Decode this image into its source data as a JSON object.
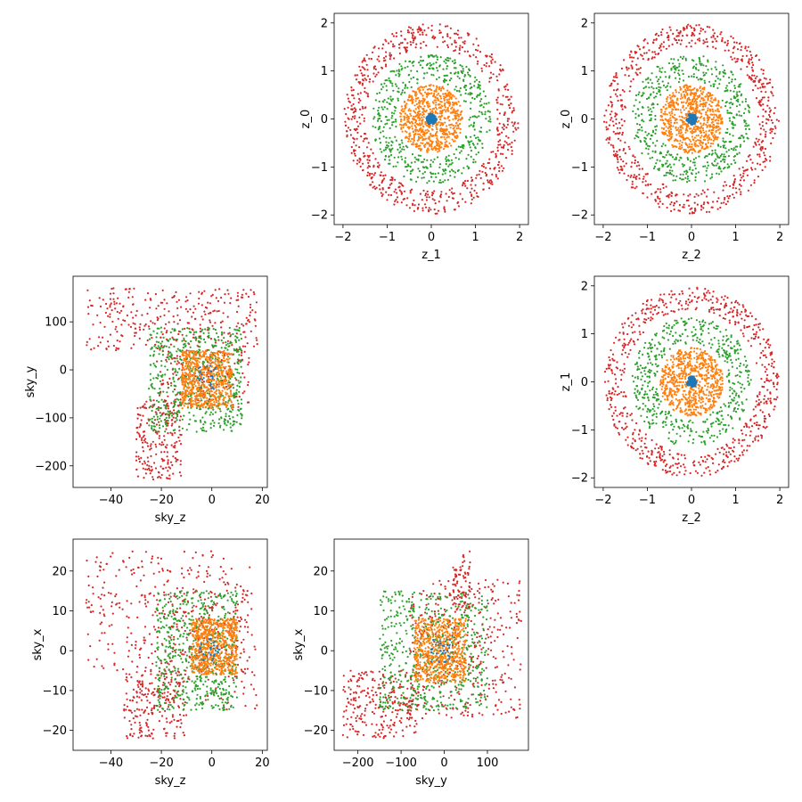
{
  "colors": {
    "s0": "#1f77b4",
    "s1": "#ff7f0e",
    "s2": "#2ca02c",
    "s3": "#d62728"
  },
  "chart_data": [
    {
      "type": "scatter",
      "xlabel": "z_1",
      "ylabel": "z_0",
      "xlim": [
        -2.2,
        2.2
      ],
      "ylim": [
        -2.2,
        2.2
      ],
      "xticks": [
        -2,
        -1,
        0,
        1,
        2
      ],
      "yticks": [
        -2,
        -1,
        0,
        1,
        2
      ],
      "xtick_labels": [
        "−2",
        "−1",
        "0",
        "1",
        "2"
      ],
      "ytick_labels": [
        "−2",
        "−1",
        "0",
        "1",
        "2"
      ],
      "grid": false,
      "series": [
        {
          "color": "#d62728",
          "shape": "ring",
          "r_in": 1.5,
          "r_out": 1.98,
          "count": 650
        },
        {
          "color": "#2ca02c",
          "shape": "ring",
          "r_in": 0.8,
          "r_out": 1.35,
          "count": 520
        },
        {
          "color": "#ff7f0e",
          "shape": "disc",
          "r_in": 0.0,
          "r_out": 0.72,
          "count": 700
        },
        {
          "color": "#1f77b4",
          "shape": "disc",
          "r_in": 0.0,
          "r_out": 0.1,
          "count": 30
        }
      ]
    },
    {
      "type": "scatter",
      "xlabel": "z_2",
      "ylabel": "z_0",
      "xlim": [
        -2.2,
        2.2
      ],
      "ylim": [
        -2.2,
        2.2
      ],
      "xticks": [
        -2,
        -1,
        0,
        1,
        2
      ],
      "yticks": [
        -2,
        -1,
        0,
        1,
        2
      ],
      "xtick_labels": [
        "−2",
        "−1",
        "0",
        "1",
        "2"
      ],
      "ytick_labels": [
        "−2",
        "−1",
        "0",
        "1",
        "2"
      ],
      "grid": false,
      "series": [
        {
          "color": "#d62728",
          "shape": "ring",
          "r_in": 1.5,
          "r_out": 1.98,
          "count": 650
        },
        {
          "color": "#2ca02c",
          "shape": "ring",
          "r_in": 0.8,
          "r_out": 1.35,
          "count": 520
        },
        {
          "color": "#ff7f0e",
          "shape": "disc",
          "r_in": 0.0,
          "r_out": 0.72,
          "count": 700
        },
        {
          "color": "#1f77b4",
          "shape": "disc",
          "r_in": 0.0,
          "r_out": 0.1,
          "count": 30
        }
      ]
    },
    {
      "type": "scatter",
      "xlabel": "sky_z",
      "ylabel": "sky_y",
      "xlim": [
        -55,
        22
      ],
      "ylim": [
        -245,
        195
      ],
      "xticks": [
        -40,
        -20,
        0,
        20
      ],
      "yticks": [
        -200,
        -100,
        0,
        100
      ],
      "xtick_labels": [
        "−40",
        "−20",
        "0",
        "20"
      ],
      "ytick_labels": [
        "−200",
        "−100",
        "0",
        "100"
      ],
      "grid": false,
      "series": [
        {
          "color": "#d62728",
          "shape": "cloud",
          "count": 700,
          "regions": [
            [
              -50,
              18,
              40,
              170,
              0.45
            ],
            [
              -30,
              -12,
              -230,
              -60,
              0.3
            ],
            [
              -22,
              15,
              -80,
              40,
              0.25
            ]
          ]
        },
        {
          "color": "#2ca02c",
          "shape": "cloud",
          "count": 600,
          "regions": [
            [
              -25,
              12,
              -130,
              90,
              1.0
            ]
          ]
        },
        {
          "color": "#ff7f0e",
          "shape": "cloud",
          "count": 650,
          "regions": [
            [
              -12,
              8,
              -80,
              40,
              1.0
            ]
          ]
        },
        {
          "color": "#1f77b4",
          "shape": "cloud",
          "count": 30,
          "regions": [
            [
              -6,
              2,
              -40,
              10,
              1.0
            ]
          ]
        }
      ]
    },
    {
      "type": "scatter",
      "xlabel": "z_2",
      "ylabel": "z_1",
      "xlim": [
        -2.2,
        2.2
      ],
      "ylim": [
        -2.2,
        2.2
      ],
      "xticks": [
        -2,
        -1,
        0,
        1,
        2
      ],
      "yticks": [
        -2,
        -1,
        0,
        1,
        2
      ],
      "xtick_labels": [
        "−2",
        "−1",
        "0",
        "1",
        "2"
      ],
      "ytick_labels": [
        "−2",
        "−1",
        "0",
        "1",
        "2"
      ],
      "grid": false,
      "series": [
        {
          "color": "#d62728",
          "shape": "ring",
          "r_in": 1.5,
          "r_out": 1.98,
          "count": 650
        },
        {
          "color": "#2ca02c",
          "shape": "ring",
          "r_in": 0.8,
          "r_out": 1.35,
          "count": 520
        },
        {
          "color": "#ff7f0e",
          "shape": "disc",
          "r_in": 0.0,
          "r_out": 0.72,
          "count": 700
        },
        {
          "color": "#1f77b4",
          "shape": "disc",
          "r_in": 0.0,
          "r_out": 0.1,
          "count": 30
        }
      ]
    },
    {
      "type": "scatter",
      "xlabel": "sky_z",
      "ylabel": "sky_x",
      "xlim": [
        -55,
        22
      ],
      "ylim": [
        -25,
        28
      ],
      "xticks": [
        -40,
        -20,
        0,
        20
      ],
      "yticks": [
        -20,
        -10,
        0,
        10,
        20
      ],
      "xtick_labels": [
        "−40",
        "−20",
        "0",
        "20"
      ],
      "ytick_labels": [
        "−20",
        "−10",
        "0",
        "10",
        "20"
      ],
      "grid": false,
      "series": [
        {
          "color": "#d62728",
          "shape": "cloud",
          "count": 700,
          "regions": [
            [
              -50,
              15,
              -5,
              25,
              0.45
            ],
            [
              -35,
              -10,
              -22,
              -5,
              0.3
            ],
            [
              -20,
              18,
              -15,
              15,
              0.25
            ]
          ]
        },
        {
          "color": "#2ca02c",
          "shape": "cloud",
          "count": 600,
          "regions": [
            [
              -22,
              10,
              -15,
              15,
              1.0
            ]
          ]
        },
        {
          "color": "#ff7f0e",
          "shape": "cloud",
          "count": 650,
          "regions": [
            [
              -8,
              10,
              -6,
              8,
              1.0
            ]
          ]
        },
        {
          "color": "#1f77b4",
          "shape": "cloud",
          "count": 30,
          "regions": [
            [
              -5,
              3,
              -3,
              3,
              1.0
            ]
          ]
        }
      ]
    },
    {
      "type": "scatter",
      "xlabel": "sky_y",
      "ylabel": "sky_x",
      "xlim": [
        -255,
        195
      ],
      "ylim": [
        -25,
        28
      ],
      "xticks": [
        -200,
        -100,
        0,
        100
      ],
      "yticks": [
        -20,
        -10,
        0,
        10,
        20
      ],
      "xtick_labels": [
        "−200",
        "−100",
        "0",
        "100"
      ],
      "ytick_labels": [
        "−20",
        "−10",
        "0",
        "10",
        "20"
      ],
      "grid": false,
      "series": [
        {
          "color": "#d62728",
          "shape": "cloud",
          "count": 700,
          "regions": [
            [
              -235,
              -60,
              -22,
              -5,
              0.35
            ],
            [
              -80,
              180,
              -17,
              18,
              0.5
            ],
            [
              20,
              60,
              10,
              25,
              0.15
            ]
          ]
        },
        {
          "color": "#2ca02c",
          "shape": "cloud",
          "count": 600,
          "regions": [
            [
              -150,
              100,
              -15,
              15,
              1.0
            ]
          ]
        },
        {
          "color": "#ff7f0e",
          "shape": "cloud",
          "count": 650,
          "regions": [
            [
              -70,
              50,
              -8,
              8,
              1.0
            ]
          ]
        },
        {
          "color": "#1f77b4",
          "shape": "cloud",
          "count": 30,
          "regions": [
            [
              -30,
              20,
              -3,
              3,
              1.0
            ]
          ]
        }
      ]
    }
  ]
}
